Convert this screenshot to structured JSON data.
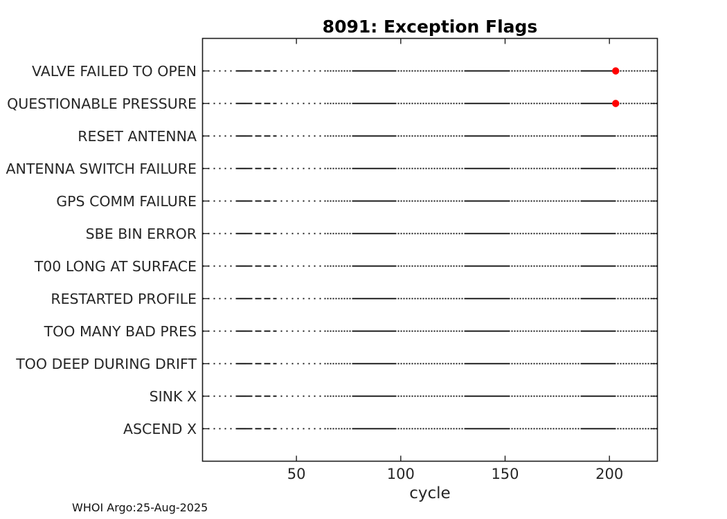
{
  "chart_data": {
    "type": "scatter",
    "title": "8091: Exception Flags",
    "xlabel": "cycle",
    "ylabel": "",
    "xticks": [
      50,
      100,
      150,
      200
    ],
    "xlim": [
      5,
      223
    ],
    "grid": false,
    "legend": null,
    "categories": [
      "VALVE FAILED TO OPEN",
      "QUESTIONABLE PRESSURE",
      "RESET ANTENNA",
      "ANTENNA SWITCH FAILURE",
      "GPS COMM FAILURE",
      "SBE BIN ERROR",
      "T00 LONG AT SURFACE",
      "RESTARTED PROFILE",
      "TOO MANY BAD PRES",
      "TOO DEEP DURING DRIFT",
      "SINK X",
      "ASCEND X"
    ],
    "flag_events": [
      {
        "category": "VALVE FAILED TO OPEN",
        "cycle": 203
      },
      {
        "category": "QUESTIONABLE PRESSURE",
        "cycle": 203
      }
    ],
    "marker_color": "#ff0000",
    "line_color": "#000000",
    "axis_color": "#1c1c1c",
    "annotation": "WHOI Argo:25-Aug-2025"
  }
}
